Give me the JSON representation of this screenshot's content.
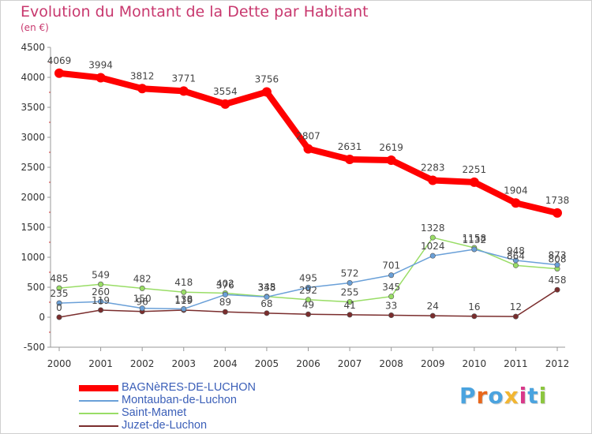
{
  "header": {
    "title": "Evolution du Montant de la Dette par Habitant",
    "unit": "(en €)"
  },
  "logo": {
    "text": "Proxiti",
    "letter_colors": [
      "#4aa3df",
      "#e8671c",
      "#4aa3df",
      "#f2b632",
      "#d9388a",
      "#4aa3df",
      "#8cc63f"
    ]
  },
  "chart_data": {
    "type": "line",
    "title": "Evolution du Montant de la Dette par Habitant",
    "ylabel": "(en €)",
    "xlabel": "",
    "x": [
      "2000",
      "2001",
      "2002",
      "2003",
      "2004",
      "2005",
      "2006",
      "2007",
      "2008",
      "2009",
      "2010",
      "2011",
      "2012"
    ],
    "ylim": [
      -500,
      4500
    ],
    "yticks": [
      "-500",
      "0",
      "500",
      "1000",
      "1500",
      "2000",
      "2500",
      "3000",
      "3500",
      "4000",
      "4500"
    ],
    "grid": false,
    "legend_position": "bottom-left",
    "series": [
      {
        "name": "BAGNèRES-DE-LUCHON",
        "color": "#ff0000",
        "values": [
          4069,
          3994,
          3812,
          3771,
          3554,
          3756,
          2807,
          2631,
          2619,
          2283,
          2251,
          1904,
          1738
        ],
        "labels": [
          "4069",
          "3994",
          "3812",
          "3771",
          "3554",
          "3756",
          "2807",
          "2631",
          "2619",
          "2283",
          "2251",
          "1904",
          "1738"
        ]
      },
      {
        "name": "Montauban-de-Luchon",
        "color": "#6aa0d8",
        "values": [
          235,
          260,
          150,
          138,
          376,
          338,
          495,
          572,
          701,
          1024,
          1132,
          948,
          873
        ],
        "labels": [
          "235",
          "260",
          "150",
          "138",
          "376",
          "338",
          "495",
          "572",
          "701",
          "1024",
          "1132",
          "948",
          "873"
        ]
      },
      {
        "name": "Saint-Mamet",
        "color": "#99dd66",
        "values": [
          485,
          549,
          482,
          418,
          402,
          345,
          292,
          255,
          345,
          1328,
          1158,
          864,
          808
        ],
        "labels": [
          "485",
          "549",
          "482",
          "418",
          "402",
          "345",
          "292",
          "255",
          "345",
          "1328",
          "1158",
          "864",
          "808"
        ]
      },
      {
        "name": "Juzet-de-Luchon",
        "color": "#7a2d2d",
        "values": [
          0,
          119,
          96,
          119,
          89,
          68,
          49,
          41,
          33,
          24,
          16,
          12,
          458
        ],
        "labels": [
          "0",
          "119",
          "96",
          "119",
          "89",
          "68",
          "49",
          "41",
          "33",
          "24",
          "16",
          "12",
          "458"
        ]
      }
    ]
  }
}
